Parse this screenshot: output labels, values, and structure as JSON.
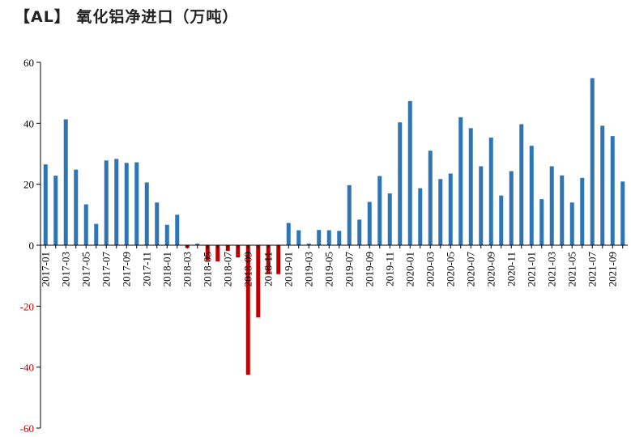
{
  "chart_data": {
    "type": "bar",
    "title": "【AL】 氧化铝净进口（万吨）",
    "xlabel": "",
    "ylabel": "",
    "ylim": [
      -60,
      60
    ],
    "yticks": [
      60,
      40,
      20,
      0,
      -20,
      -40,
      -60
    ],
    "grid": false,
    "legend": "none",
    "positive_color": "#2E75B6",
    "negative_color": "#C00000",
    "categories": [
      "2017-01",
      "2017-02",
      "2017-03",
      "2017-04",
      "2017-05",
      "2017-06",
      "2017-07",
      "2017-08",
      "2017-09",
      "2017-10",
      "2017-11",
      "2017-12",
      "2018-01",
      "2018-02",
      "2018-03",
      "2018-04",
      "2018-05",
      "2018-06",
      "2018-07",
      "2018-08",
      "2018-09",
      "2018-10",
      "2018-11",
      "2018-12",
      "2019-01",
      "2019-02",
      "2019-03",
      "2019-04",
      "2019-05",
      "2019-06",
      "2019-07",
      "2019-08",
      "2019-09",
      "2019-10",
      "2019-11",
      "2019-12",
      "2020-01",
      "2020-02",
      "2020-03",
      "2020-04",
      "2020-05",
      "2020-06",
      "2020-07",
      "2020-08",
      "2020-09",
      "2020-10",
      "2020-11",
      "2020-12",
      "2021-01",
      "2021-02",
      "2021-03",
      "2021-04",
      "2021-05",
      "2021-06",
      "2021-07",
      "2021-08",
      "2021-09",
      "2021-10"
    ],
    "tick_labels": [
      "2017-01",
      "2017-03",
      "2017-05",
      "2017-07",
      "2017-09",
      "2017-11",
      "2018-01",
      "2018-03",
      "2018-05",
      "2018-07",
      "2018-09",
      "2018-11",
      "2019-01",
      "2019-03",
      "2019-05",
      "2019-07",
      "2019-09",
      "2019-11",
      "2020-01",
      "2020-03",
      "2020-05",
      "2020-07",
      "2020-09",
      "2020-11",
      "2021-01",
      "2021-03",
      "2021-05",
      "2021-07",
      "2021-09"
    ],
    "values": [
      26.5,
      22.8,
      41.3,
      24.8,
      13.4,
      7.0,
      27.8,
      28.3,
      27.0,
      27.2,
      20.6,
      14.0,
      6.7,
      10.0,
      -0.9,
      0.5,
      -5.0,
      -5.3,
      -1.9,
      -4.0,
      -42.5,
      -23.7,
      -9.5,
      -9.5,
      7.3,
      4.9,
      0.5,
      5.0,
      4.9,
      4.7,
      19.7,
      8.4,
      14.2,
      22.7,
      17.0,
      40.3,
      47.3,
      18.7,
      31.0,
      21.7,
      23.5,
      42.0,
      38.4,
      25.9,
      35.3,
      16.3,
      24.3,
      39.7,
      32.6,
      15.1,
      25.9,
      22.9,
      14.0,
      22.1,
      54.8,
      39.2,
      35.8,
      20.9
    ]
  }
}
